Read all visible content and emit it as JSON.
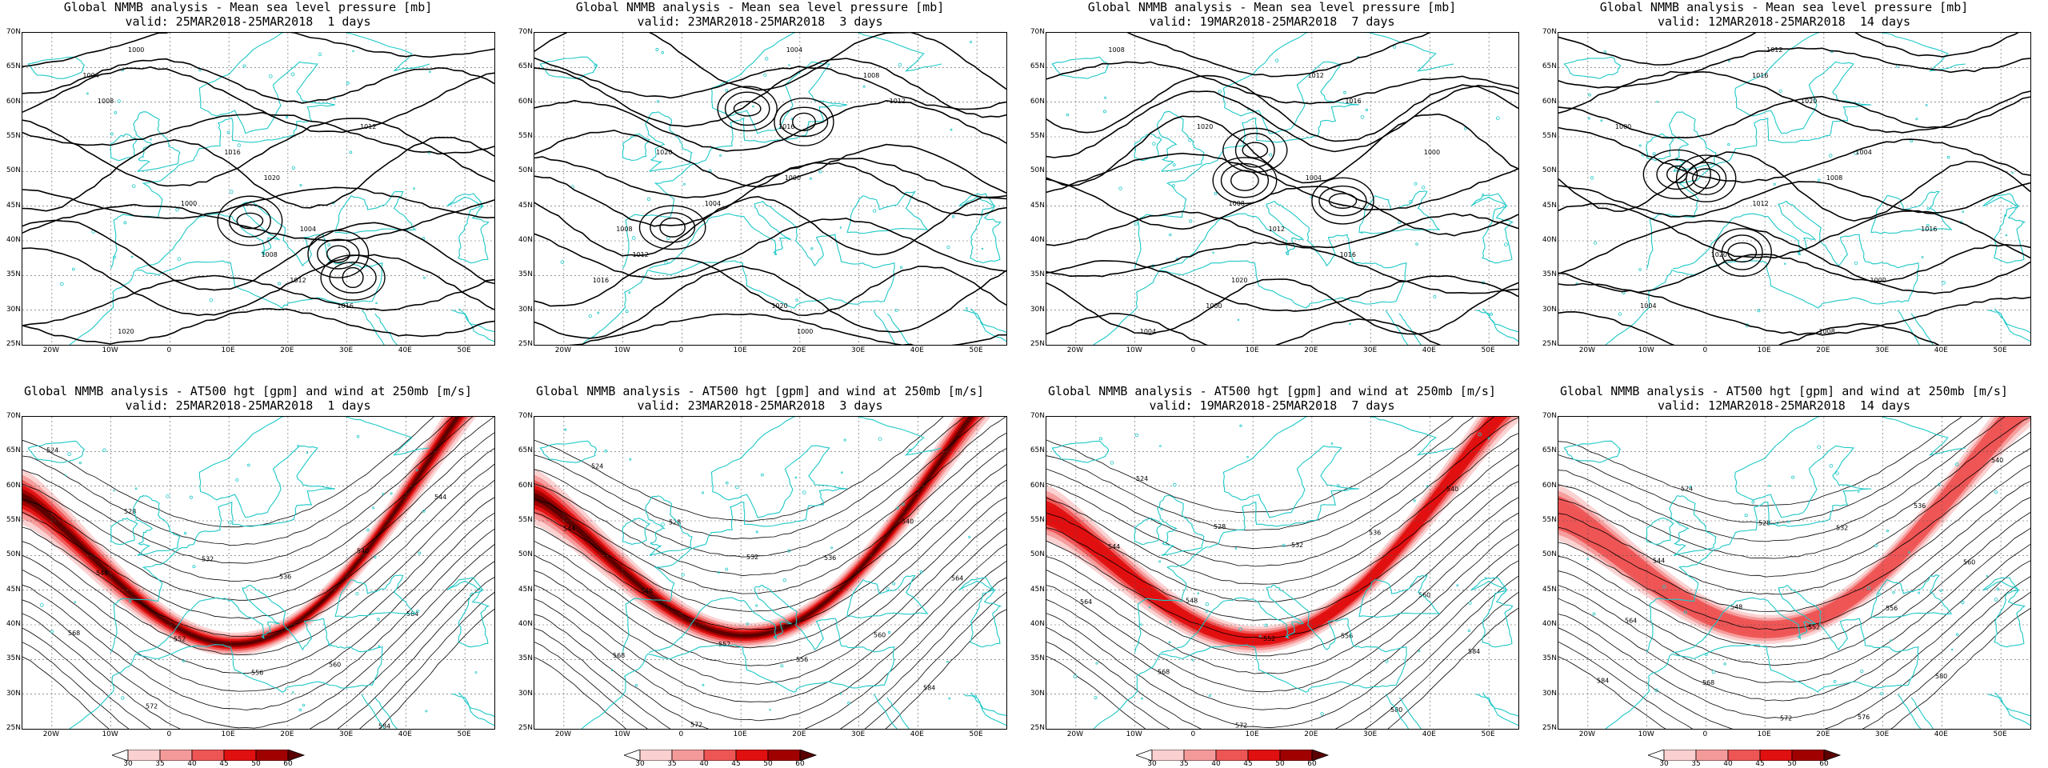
{
  "rows": [
    {
      "kind": "mslp",
      "title": "Global NMMB analysis - Mean sea level pressure [mb]",
      "panels": [
        {
          "valid": "valid: 25MAR2018-25MAR2018  1 days"
        },
        {
          "valid": "valid: 23MAR2018-25MAR2018  3 days"
        },
        {
          "valid": "valid: 19MAR2018-25MAR2018  7 days"
        },
        {
          "valid": "valid: 12MAR2018-25MAR2018  14 days"
        }
      ]
    },
    {
      "kind": "z500",
      "title": "Global NMMB analysis - AT500 hgt [gpm] and wind at 250mb [m/s]",
      "panels": [
        {
          "valid": "valid: 25MAR2018-25MAR2018  1 days"
        },
        {
          "valid": "valid: 23MAR2018-25MAR2018  3 days"
        },
        {
          "valid": "valid: 19MAR2018-25MAR2018  7 days"
        },
        {
          "valid": "valid: 12MAR2018-25MAR2018  14 days"
        }
      ]
    }
  ],
  "lat_ticks": [
    "70N",
    "65N",
    "60N",
    "55N",
    "50N",
    "45N",
    "40N",
    "35N",
    "30N",
    "25N"
  ],
  "lon_ticks": [
    "20W",
    "10W",
    "0",
    "10E",
    "20E",
    "30E",
    "40E",
    "50E"
  ],
  "mslp_labels": [
    "1000",
    "1004",
    "1008",
    "1012",
    "1016",
    "1020"
  ],
  "z500_labels": [
    "524",
    "528",
    "532",
    "536",
    "540",
    "544",
    "548",
    "552",
    "556",
    "560",
    "564",
    "568",
    "572",
    "576",
    "580",
    "584"
  ],
  "wind_colorbar": {
    "levels": [
      "30",
      "35",
      "40",
      "45",
      "50",
      "60"
    ],
    "colors": [
      "#ffffff",
      "#fbd0d0",
      "#f59a9a",
      "#ee5555",
      "#e01010",
      "#a00000",
      "#5a0000"
    ]
  },
  "colors": {
    "coastline": "#1fc8c8",
    "contour": "#000000",
    "grid": "#555555"
  }
}
